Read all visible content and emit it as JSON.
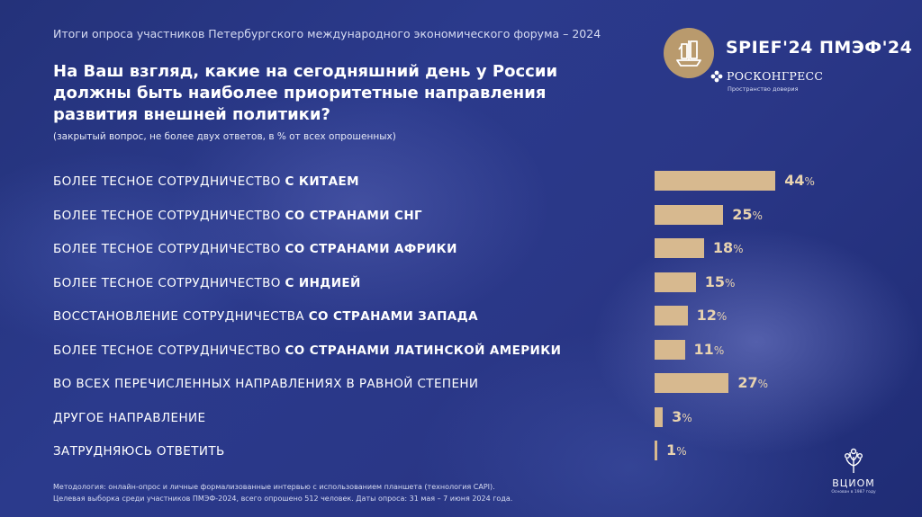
{
  "header": {
    "survey_line": "Итоги опроса участников Петербургского международного экономического форума – 2024",
    "question": "На Ваш взгляд, какие на сегодняшний день у России должны быть наиболее приоритетные направления развития внешней политики?",
    "note": "(закрытый вопрос, не более двух ответов, в % от всех опрошенных)"
  },
  "branding": {
    "forum": "SPIEF'24 ПМЭФ'24",
    "organizer": "РОСКОНГРЕСС",
    "organizer_tagline": "Пространство доверия",
    "pollster": "ВЦИОМ",
    "pollster_tagline": "Основан в 1987 году",
    "accent_color": "#d7b98f",
    "logo_color": "#b99a6d"
  },
  "chart_data": {
    "type": "bar",
    "orientation": "horizontal",
    "value_suffix": "%",
    "categories": [
      {
        "plain": "БОЛЕЕ ТЕСНОЕ СОТРУДНИЧЕСТВО ",
        "bold": "С КИТАЕМ"
      },
      {
        "plain": "БОЛЕЕ ТЕСНОЕ СОТРУДНИЧЕСТВО ",
        "bold": "СО СТРАНАМИ СНГ"
      },
      {
        "plain": "БОЛЕЕ ТЕСНОЕ СОТРУДНИЧЕСТВО ",
        "bold": "СО СТРАНАМИ АФРИКИ"
      },
      {
        "plain": "БОЛЕЕ ТЕСНОЕ СОТРУДНИЧЕСТВО ",
        "bold": "С ИНДИЕЙ"
      },
      {
        "plain": "ВОССТАНОВЛЕНИЕ СОТРУДНИЧЕСТВА ",
        "bold": "СО СТРАНАМИ ЗАПАДА"
      },
      {
        "plain": "БОЛЕЕ ТЕСНОЕ СОТРУДНИЧЕСТВО ",
        "bold": "СО СТРАНАМИ ЛАТИНСКОЙ АМЕРИКИ"
      },
      {
        "plain": "ВО ВСЕХ ПЕРЕЧИСЛЕННЫХ НАПРАВЛЕНИЯХ В РАВНОЙ СТЕПЕНИ",
        "bold": ""
      },
      {
        "plain": "ДРУГОЕ НАПРАВЛЕНИЕ",
        "bold": ""
      },
      {
        "plain": "ЗАТРУДНЯЮСЬ ОТВЕТИТЬ",
        "bold": ""
      }
    ],
    "values": [
      44,
      25,
      18,
      15,
      12,
      11,
      27,
      3,
      1
    ],
    "bar_color": "#d7b98f"
  },
  "footer": {
    "methodology": "Методология: онлайн-опрос и личные формализованные интервью с использованием планшета (технология CAPI).",
    "sample": "Целевая выборка среди участников ПМЭФ-2024, всего опрошено 512 человек. Даты опроса: 31 мая – 7 июня 2024 года."
  }
}
